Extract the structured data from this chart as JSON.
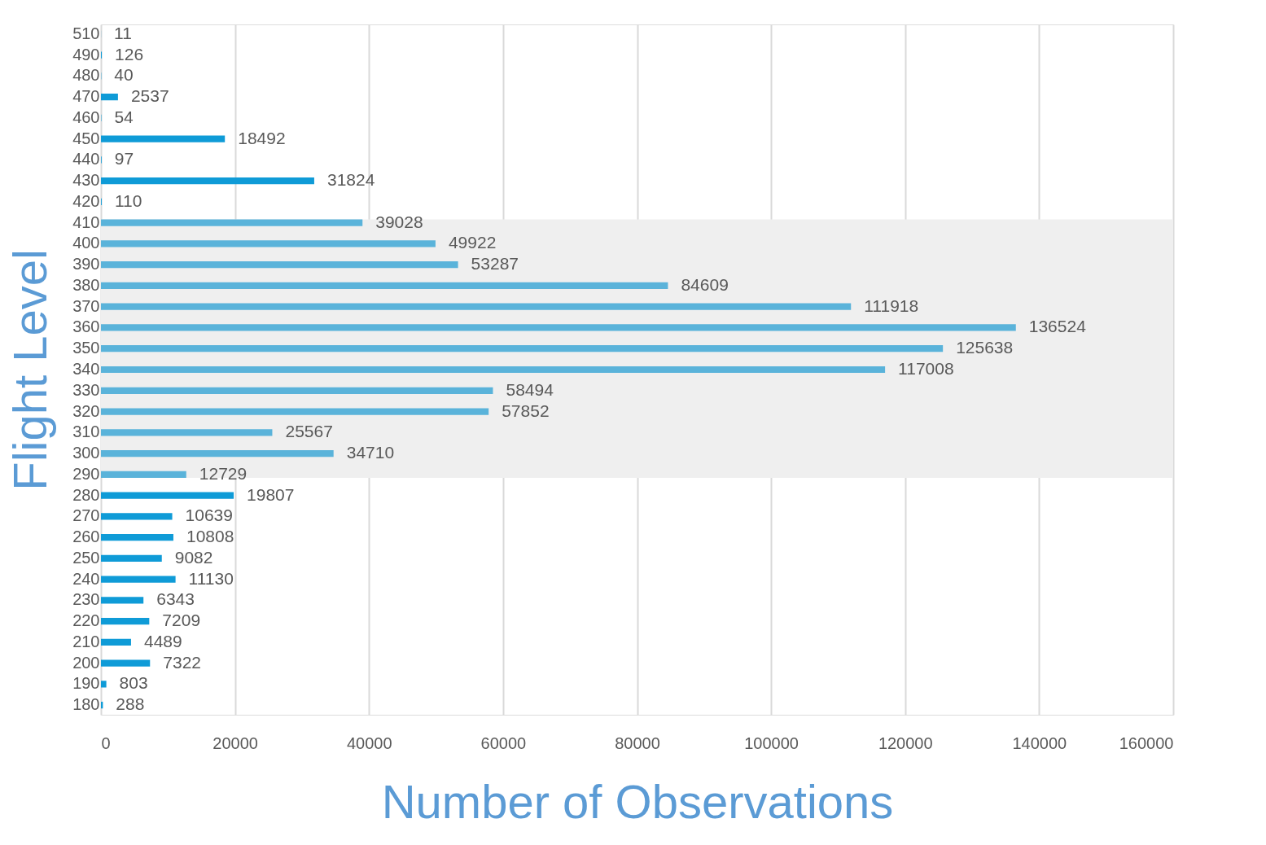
{
  "chart_data": {
    "type": "bar",
    "orientation": "horizontal",
    "xlabel": "Number of Observations",
    "ylabel": "Flight Level",
    "categories": [
      "510",
      "490",
      "480",
      "470",
      "460",
      "450",
      "440",
      "430",
      "420",
      "410",
      "400",
      "390",
      "380",
      "370",
      "360",
      "350",
      "340",
      "330",
      "320",
      "310",
      "300",
      "290",
      "280",
      "270",
      "260",
      "250",
      "240",
      "230",
      "220",
      "210",
      "200",
      "190",
      "180"
    ],
    "values": [
      11,
      126,
      40,
      2537,
      54,
      18492,
      97,
      31824,
      110,
      39028,
      49922,
      53287,
      84609,
      111918,
      136524,
      125638,
      117008,
      58494,
      57852,
      25567,
      34710,
      12729,
      19807,
      10639,
      10808,
      9082,
      11130,
      6343,
      7209,
      4489,
      7322,
      803,
      288
    ],
    "colors": [
      "#0f9bd7",
      "#0f9bd7",
      "#0f9bd7",
      "#0f9bd7",
      "#0f9bd7",
      "#0f9bd7",
      "#0f9bd7",
      "#0f9bd7",
      "#0f9bd7",
      "#5ab3da",
      "#5ab3da",
      "#5ab3da",
      "#5ab3da",
      "#5ab3da",
      "#5ab3da",
      "#5ab3da",
      "#5ab3da",
      "#5ab3da",
      "#5ab3da",
      "#5ab3da",
      "#5ab3da",
      "#5ab3da",
      "#0f9bd7",
      "#0f9bd7",
      "#0f9bd7",
      "#0f9bd7",
      "#0f9bd7",
      "#0f9bd7",
      "#0f9bd7",
      "#0f9bd7",
      "#0f9bd7",
      "#0f9bd7",
      "#0f9bd7"
    ],
    "xlim": [
      0,
      160000
    ],
    "xticks": [
      0,
      20000,
      40000,
      60000,
      80000,
      100000,
      120000,
      140000,
      160000
    ],
    "bands": [
      {
        "axis": "y",
        "from": "410",
        "to": "290",
        "color": "#efefef"
      }
    ],
    "grid": "x",
    "data_labels": true
  }
}
